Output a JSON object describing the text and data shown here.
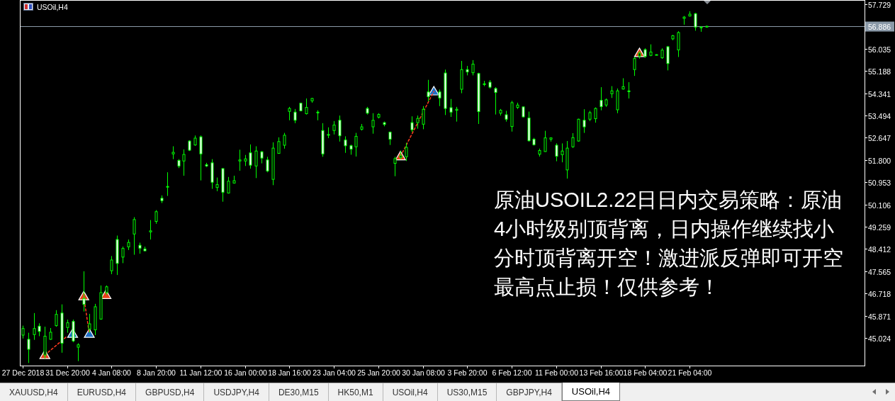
{
  "chart_data": {
    "type": "candlestick",
    "title": "USOil,H4",
    "color": "#00ff00",
    "categories": [
      "27 Dec 2018",
      null,
      null,
      null,
      null,
      null,
      null,
      null,
      "31 Dec 20:00",
      null,
      null,
      null,
      null,
      null,
      null,
      null,
      "4 Jan 08:00",
      null,
      null,
      null,
      null,
      null,
      null,
      null,
      "8 Jan 20:00",
      null,
      null,
      null,
      null,
      null,
      null,
      null,
      "11 Jan 12:00",
      null,
      null,
      null,
      null,
      null,
      null,
      null,
      "16 Jan 00:00",
      null,
      null,
      null,
      null,
      null,
      null,
      null,
      "18 Jan 16:00",
      null,
      null,
      null,
      null,
      null,
      null,
      null,
      "23 Jan 04:00",
      null,
      null,
      null,
      null,
      null,
      null,
      null,
      "25 Jan 20:00",
      null,
      null,
      null,
      null,
      null,
      null,
      null,
      "30 Jan 08:00",
      null,
      null,
      null,
      null,
      null,
      null,
      null,
      "3 Feb 20:00",
      null,
      null,
      null,
      null,
      null,
      null,
      null,
      "6 Feb 12:00",
      null,
      null,
      null,
      null,
      null,
      null,
      null,
      "11 Feb 00:00",
      null,
      null,
      null,
      null,
      null,
      null,
      null,
      "13 Feb 16:00",
      null,
      null,
      null,
      null,
      null,
      null,
      null,
      "18 Feb 04:00",
      null,
      null,
      null,
      null,
      null,
      null,
      null,
      "21 Feb 04:00",
      null,
      null,
      null,
      null,
      null,
      null,
      null,
      null,
      null,
      null,
      null,
      null,
      null,
      null,
      null,
      null,
      null,
      null,
      null,
      null,
      null,
      null,
      null,
      null,
      null,
      null,
      null,
      null,
      null,
      null,
      null
    ],
    "ohlc": [
      [
        45.13,
        45.49,
        45.0,
        45.38
      ],
      [
        44.97,
        45.22,
        44.07,
        44.59
      ],
      [
        45.15,
        45.97,
        44.95,
        45.38
      ],
      [
        45.47,
        45.58,
        45.09,
        45.27
      ],
      [
        44.37,
        45.45,
        44.23,
        45.09
      ],
      [
        44.97,
        45.4,
        44.95,
        45.24
      ],
      [
        45.49,
        46.08,
        45.45,
        45.92
      ],
      [
        45.97,
        46.3,
        44.46,
        44.82
      ],
      [
        45.42,
        45.72,
        45.22,
        45.6
      ],
      [
        45.65,
        45.72,
        44.86,
        44.91
      ],
      [
        44.67,
        44.82,
        44.14,
        44.76
      ],
      [
        46.52,
        47.56,
        46.03,
        46.3
      ],
      [
        45.36,
        45.94,
        45.22,
        45.56
      ],
      [
        45.33,
        46.32,
        45.13,
        46.21
      ],
      [
        45.74,
        47.02,
        45.72,
        46.75
      ],
      [
        46.75,
        47.02,
        46.66,
        46.97
      ],
      [
        47.58,
        48.14,
        47.45,
        47.99
      ],
      [
        48.77,
        48.92,
        47.42,
        47.86
      ],
      [
        48.1,
        48.5,
        47.87,
        48.43
      ],
      [
        48.49,
        48.77,
        48.37,
        48.66
      ],
      [
        48.98,
        49.62,
        48.19,
        49.53
      ],
      [
        48.55,
        48.65,
        48.23,
        48.44
      ],
      [
        48.41,
        48.5,
        48.32,
        48.34
      ],
      [
        49.06,
        49.51,
        48.77,
        49.1
      ],
      [
        49.46,
        49.89,
        49.37,
        49.83
      ],
      [
        50.34,
        50.45,
        50.16,
        50.25
      ],
      [
        50.77,
        51.33,
        50.43,
        50.79
      ],
      [
        52.03,
        52.32,
        51.83,
        52.09
      ],
      [
        51.78,
        51.83,
        51.49,
        51.57
      ],
      [
        51.76,
        52.2,
        51.2,
        52.01
      ],
      [
        52.52,
        52.55,
        52.14,
        52.17
      ],
      [
        52.37,
        52.73,
        52.34,
        52.63
      ],
      [
        52.68,
        52.73,
        51.02,
        52.03
      ],
      [
        51.62,
        51.69,
        51.53,
        51.57
      ],
      [
        51.69,
        51.83,
        50.7,
        50.95
      ],
      [
        50.75,
        51.13,
        50.61,
        50.86
      ],
      [
        51.47,
        51.49,
        50.21,
        50.57
      ],
      [
        50.54,
        51.15,
        50.52,
        50.99
      ],
      [
        50.92,
        51.2,
        50.9,
        51.01
      ],
      [
        51.76,
        52.19,
        51.39,
        51.8
      ],
      [
        51.76,
        51.99,
        51.57,
        51.84
      ],
      [
        52.07,
        52.39,
        51.47,
        51.6
      ],
      [
        51.57,
        52.32,
        51.11,
        52.14
      ],
      [
        52.11,
        52.14,
        51.67,
        51.87
      ],
      [
        51.8,
        51.92,
        51.33,
        51.38
      ],
      [
        51.06,
        52.47,
        50.84,
        52.25
      ],
      [
        52.05,
        52.66,
        52.05,
        52.5
      ],
      [
        52.36,
        52.83,
        52.23,
        52.74
      ],
      [
        53.65,
        53.82,
        53.31,
        53.76
      ],
      [
        53.62,
        53.74,
        53.2,
        53.31
      ],
      [
        53.96,
        53.98,
        53.65,
        53.67
      ],
      [
        53.56,
        54.14,
        53.53,
        53.8
      ],
      [
        54.05,
        54.16,
        53.98,
        54.14
      ],
      [
        53.62,
        53.69,
        53.31,
        53.6
      ],
      [
        52.92,
        53.2,
        51.92,
        52.03
      ],
      [
        52.74,
        53.04,
        52.63,
        52.77
      ],
      [
        52.92,
        53.28,
        52.77,
        53.13
      ],
      [
        53.31,
        53.49,
        52.5,
        52.72
      ],
      [
        52.56,
        52.7,
        52.07,
        52.34
      ],
      [
        52.34,
        52.38,
        52.0,
        52.21
      ],
      [
        52.3,
        52.83,
        51.93,
        52.7
      ],
      [
        52.97,
        53.17,
        52.92,
        53.06
      ],
      [
        53.76,
        53.82,
        53.53,
        53.58
      ],
      [
        53.06,
        53.58,
        52.8,
        53.31
      ],
      [
        53.43,
        53.58,
        53.38,
        53.53
      ],
      [
        53.22,
        53.26,
        53.08,
        53.15
      ],
      [
        52.86,
        52.88,
        52.37,
        52.59
      ],
      [
        51.67,
        51.92,
        51.18,
        51.85
      ],
      [
        51.89,
        52.14,
        51.83,
        51.96
      ],
      [
        51.92,
        52.45,
        51.76,
        52.28
      ],
      [
        53.22,
        53.46,
        52.86,
        52.95
      ],
      [
        53.22,
        53.49,
        52.99,
        53.38
      ],
      [
        53.16,
        53.85,
        52.97,
        53.73
      ],
      [
        54.39,
        54.85,
        54.03,
        54.21
      ],
      null,
      [
        54.39,
        54.48,
        53.85,
        54.16
      ],
      [
        55.11,
        55.24,
        53.51,
        53.76
      ],
      [
        53.79,
        54.12,
        53.44,
        53.62
      ],
      [
        53.69,
        53.82,
        53.26,
        53.73
      ],
      [
        54.49,
        55.57,
        54.34,
        55.24
      ],
      [
        55.24,
        55.38,
        55.02,
        55.15
      ],
      [
        55.12,
        55.6,
        55.02,
        55.45
      ],
      [
        55.09,
        55.12,
        53.17,
        53.64
      ],
      [
        54.67,
        54.81,
        54.61,
        54.7
      ],
      [
        54.76,
        54.84,
        54.52,
        54.57
      ],
      [
        54.52,
        54.57,
        53.53,
        54.37
      ],
      [
        53.58,
        53.74,
        53.49,
        53.69
      ],
      [
        53.52,
        53.67,
        53.26,
        53.35
      ],
      [
        53.07,
        54.05,
        52.88,
        53.98
      ],
      [
        53.8,
        53.98,
        53.74,
        53.89
      ],
      [
        53.82,
        53.83,
        53.42,
        53.44
      ],
      [
        53.4,
        53.64,
        52.5,
        52.53
      ],
      [
        52.59,
        52.64,
        52.35,
        52.38
      ],
      [
        52.02,
        52.23,
        51.93,
        52.16
      ],
      [
        52.12,
        52.91,
        52.11,
        52.64
      ],
      [
        52.59,
        52.66,
        52.5,
        52.64
      ],
      [
        52.36,
        52.43,
        51.75,
        51.94
      ],
      [
        52.0,
        52.43,
        51.71,
        52.14
      ],
      [
        51.42,
        52.52,
        51.09,
        52.25
      ],
      [
        52.3,
        52.82,
        52.26,
        52.65
      ],
      [
        52.52,
        53.37,
        52.5,
        53.35
      ],
      [
        53.31,
        53.73,
        52.83,
        53.06
      ],
      [
        53.35,
        53.67,
        53.28,
        53.6
      ],
      [
        53.37,
        53.8,
        53.22,
        53.76
      ],
      [
        54.07,
        54.57,
        53.69,
        53.83
      ],
      [
        53.89,
        54.14,
        53.82,
        54.09
      ],
      [
        54.32,
        54.61,
        54.16,
        54.43
      ],
      [
        53.71,
        54.52,
        53.58,
        54.43
      ],
      [
        54.5,
        54.91,
        54.48,
        54.59
      ],
      [
        54.43,
        54.76,
        54.14,
        54.4
      ],
      [
        55.24,
        55.73,
        55.0,
        55.66
      ],
      [
        55.75,
        55.93,
        55.66,
        55.87
      ],
      [
        56.0,
        56.05,
        55.69,
        55.74
      ],
      [
        55.78,
        56.2,
        55.75,
        55.91
      ],
      [
        55.81,
        55.82,
        55.79,
        55.81
      ],
      [
        55.69,
        56.05,
        55.65,
        55.98
      ],
      [
        56.11,
        56.14,
        55.21,
        55.47
      ],
      [
        56.41,
        56.56,
        56.36,
        56.53
      ],
      [
        55.99,
        56.7,
        55.72,
        56.65
      ],
      [
        57.19,
        57.28,
        56.95,
        57.24
      ],
      [
        57.28,
        57.46,
        57.26,
        57.35
      ],
      [
        57.37,
        57.4,
        56.72,
        56.86
      ],
      [
        56.83,
        56.88,
        56.68,
        56.86
      ],
      [
        56.86,
        56.91,
        56.84,
        56.89
      ],
      null,
      null,
      null,
      null,
      null,
      null,
      null,
      null,
      null,
      null,
      null,
      null,
      null,
      null,
      null,
      null,
      null,
      null,
      null,
      null,
      null,
      null,
      null,
      null,
      null,
      null,
      null,
      null
    ],
    "series": [
      {
        "type": "scatter",
        "color": "#e8401c",
        "marker": "triangle",
        "values": [
          null,
          null,
          null,
          null,
          44.37,
          null,
          null,
          null,
          null,
          null,
          null,
          46.61,
          null,
          null,
          null,
          46.66,
          null,
          null,
          null,
          null,
          null,
          null,
          null,
          null,
          null,
          null,
          null,
          null,
          null,
          null,
          null,
          null,
          null,
          null,
          null,
          null,
          null,
          null,
          null,
          null,
          null,
          null,
          null,
          null,
          null,
          null,
          null,
          null,
          null,
          null,
          null,
          null,
          null,
          null,
          null,
          null,
          null,
          null,
          null,
          null,
          null,
          null,
          null,
          null,
          null,
          null,
          null,
          null,
          51.94,
          null,
          null,
          null,
          null,
          null,
          null,
          null,
          null,
          null,
          null,
          null,
          null,
          null,
          null,
          null,
          null,
          null,
          null,
          null,
          null,
          null,
          null,
          null,
          null,
          null,
          null,
          null,
          null,
          null,
          null,
          null,
          null,
          null,
          null,
          null,
          null,
          null,
          null,
          null,
          null,
          null,
          null,
          55.87,
          null,
          null,
          null,
          null,
          null,
          null,
          null,
          null,
          null,
          null,
          null,
          null,
          null,
          null,
          null,
          null,
          null,
          null,
          null,
          null,
          null,
          null,
          null,
          null,
          null,
          null,
          null,
          null,
          null,
          null,
          null,
          null,
          null,
          null,
          null,
          null,
          null,
          null,
          null,
          null
        ]
      },
      {
        "type": "scatter",
        "color": "#1f6fc5",
        "marker": "triangle",
        "values": [
          null,
          null,
          null,
          null,
          null,
          null,
          null,
          null,
          null,
          45.18,
          null,
          null,
          45.18,
          null,
          null,
          null,
          null,
          null,
          null,
          null,
          null,
          null,
          null,
          null,
          null,
          null,
          null,
          null,
          null,
          null,
          null,
          null,
          null,
          null,
          null,
          null,
          null,
          null,
          null,
          null,
          null,
          null,
          null,
          null,
          null,
          null,
          null,
          null,
          null,
          null,
          null,
          null,
          null,
          null,
          null,
          null,
          null,
          null,
          null,
          null,
          null,
          null,
          null,
          null,
          null,
          null,
          null,
          null,
          null,
          null,
          null,
          null,
          null,
          null,
          54.41,
          null,
          null,
          null,
          null,
          null,
          null,
          null,
          null,
          null,
          null,
          null,
          null,
          null,
          null,
          null,
          null,
          null,
          null,
          null,
          null,
          null,
          null,
          null,
          null,
          null,
          null,
          null,
          null,
          null,
          null,
          null,
          null,
          null,
          null,
          null,
          null,
          null,
          null,
          null,
          null,
          null,
          null,
          null,
          null,
          null,
          null,
          null,
          null,
          null,
          null,
          null,
          null,
          null,
          null,
          null,
          null,
          null,
          null,
          null,
          null,
          null,
          null,
          null,
          null,
          null,
          null,
          null,
          null,
          null,
          null,
          null,
          null,
          null,
          null,
          null,
          null,
          null
        ]
      },
      {
        "type": "line",
        "color": "#ff3b1f",
        "line_style": "dashed",
        "values": [
          null,
          null,
          null,
          null,
          44.37,
          null,
          null,
          null,
          45.09,
          null,
          null,
          null,
          null,
          null,
          null,
          null,
          null,
          null,
          null,
          null,
          null,
          null,
          null,
          null,
          null,
          null,
          null,
          null,
          null,
          null,
          null,
          null,
          null,
          null,
          null,
          null,
          null,
          null,
          null,
          null,
          null,
          null,
          null,
          null,
          null,
          null,
          null,
          null,
          null,
          null,
          null,
          null,
          null,
          null,
          null,
          null,
          null,
          null,
          null,
          null,
          null,
          null,
          null,
          null,
          null,
          null,
          null,
          null,
          null,
          null,
          null,
          null,
          null,
          null,
          null,
          null,
          null,
          null,
          null,
          null,
          null,
          null,
          null,
          null,
          null,
          null,
          null,
          null,
          null,
          null,
          null,
          null,
          null,
          null,
          null,
          null,
          null,
          null,
          null,
          null,
          null,
          null,
          null,
          null,
          null,
          null,
          null,
          null,
          null,
          null,
          null,
          null,
          null,
          null,
          null,
          null,
          null,
          null,
          null,
          null,
          null,
          null,
          null,
          null,
          null,
          null,
          null,
          null,
          null,
          null,
          null,
          null,
          null,
          null,
          null,
          null,
          null,
          null,
          null,
          null,
          null,
          null,
          null,
          null,
          null,
          null,
          null,
          null,
          null,
          null,
          null,
          null
        ]
      },
      {
        "type": "line",
        "color": "#ff3b1f",
        "line_style": "dashed",
        "values": [
          null,
          null,
          null,
          null,
          null,
          null,
          null,
          null,
          null,
          null,
          null,
          46.61,
          45.18,
          null,
          null,
          null,
          null,
          null,
          null,
          null,
          null,
          null,
          null,
          null,
          null,
          null,
          null,
          null,
          null,
          null,
          null,
          null,
          null,
          null,
          null,
          null,
          null,
          null,
          null,
          null,
          null,
          null,
          null,
          null,
          null,
          null,
          null,
          null,
          null,
          null,
          null,
          null,
          null,
          null,
          null,
          null,
          null,
          null,
          null,
          null,
          null,
          null,
          null,
          null,
          null,
          null,
          null,
          null,
          null,
          null,
          null,
          null,
          null,
          null,
          null,
          null,
          null,
          null,
          null,
          null,
          null,
          null,
          null,
          null,
          null,
          null,
          null,
          null,
          null,
          null,
          null,
          null,
          null,
          null,
          null,
          null,
          null,
          null,
          null,
          null,
          null,
          null,
          null,
          null,
          null,
          null,
          null,
          null,
          null,
          null,
          null,
          null,
          null,
          null,
          null,
          null,
          null,
          null,
          null,
          null,
          null,
          null,
          null,
          null,
          null,
          null,
          null,
          null,
          null,
          null,
          null,
          null,
          null,
          null,
          null,
          null,
          null,
          null,
          null,
          null,
          null,
          null,
          null,
          null,
          null,
          null,
          null,
          null,
          null,
          null,
          null,
          null
        ]
      },
      {
        "type": "line",
        "color": "#ff3b1f",
        "line_style": "dashed",
        "values": [
          null,
          null,
          null,
          null,
          null,
          null,
          null,
          null,
          null,
          null,
          null,
          null,
          null,
          null,
          null,
          null,
          null,
          null,
          null,
          null,
          null,
          null,
          null,
          null,
          null,
          null,
          null,
          null,
          null,
          null,
          null,
          null,
          null,
          null,
          null,
          null,
          null,
          null,
          null,
          null,
          null,
          null,
          null,
          null,
          null,
          null,
          null,
          null,
          null,
          null,
          null,
          null,
          null,
          null,
          null,
          null,
          null,
          null,
          null,
          null,
          null,
          null,
          null,
          null,
          null,
          null,
          null,
          null,
          51.94,
          null,
          null,
          null,
          null,
          null,
          54.41,
          null,
          null,
          null,
          null,
          null,
          null,
          null,
          null,
          null,
          null,
          null,
          null,
          null,
          null,
          null,
          null,
          null,
          null,
          null,
          null,
          null,
          null,
          null,
          null,
          null,
          null,
          null,
          null,
          null,
          null,
          null,
          null,
          null,
          null,
          null,
          null,
          null,
          null,
          null,
          null,
          null,
          null,
          null,
          null,
          null,
          null,
          null,
          null,
          null,
          null,
          null,
          null,
          null,
          null,
          null,
          null,
          null,
          null,
          null,
          null,
          null,
          null,
          null,
          null,
          null,
          null,
          null,
          null,
          null,
          null,
          null,
          null,
          null,
          null,
          null,
          null,
          null
        ]
      }
    ],
    "ylim": [
      43.97,
      57.89
    ],
    "yticks": [
      57.729,
      56.035,
      55.188,
      54.341,
      53.494,
      52.647,
      {
        "value": 51.8,
        "label": "51.800"
      },
      50.953,
      50.106,
      49.259,
      48.412,
      47.565,
      46.718,
      45.871,
      45.024
    ],
    "ref_lines": [
      {
        "axis": "y",
        "value": 56.886,
        "label": "56.886",
        "color": "#8a99a8"
      }
    ],
    "annotations": [
      "原油USOIL2.22日日内交易策略：原油4小时级别顶背离，日内操作继续找小分时顶背离开空！激进派反弹即可开空最高点止损！仅供参考！",
      "XAUUSD,H4",
      "EURUSD,H4",
      "GBPUSD,H4",
      "USDJPY,H4",
      "DE30,M15",
      "HK50,M1",
      "USOil,H4",
      "US30,M15",
      "GBPJPY,H4",
      "USOil,H4"
    ]
  }
}
